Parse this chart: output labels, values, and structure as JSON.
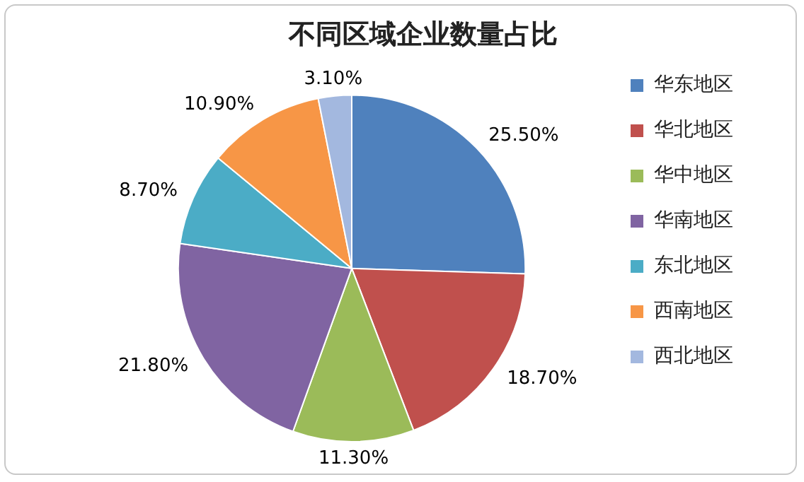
{
  "chart_data": {
    "type": "pie",
    "title": "不同区域企业数量占比",
    "categories": [
      "华东地区",
      "华北地区",
      "华中地区",
      "华南地区",
      "东北地区",
      "西南地区",
      "西北地区"
    ],
    "values": [
      25.5,
      18.7,
      11.3,
      21.8,
      8.7,
      10.9,
      3.1
    ],
    "value_labels": [
      "25.50%",
      "18.70%",
      "11.30%",
      "21.80%",
      "8.70%",
      "10.90%",
      "3.10%"
    ],
    "colors": [
      "#4f81bd",
      "#c0504d",
      "#9bbb59",
      "#8064a2",
      "#4bacc6",
      "#f79646",
      "#a3b8df"
    ],
    "legend": "right"
  }
}
